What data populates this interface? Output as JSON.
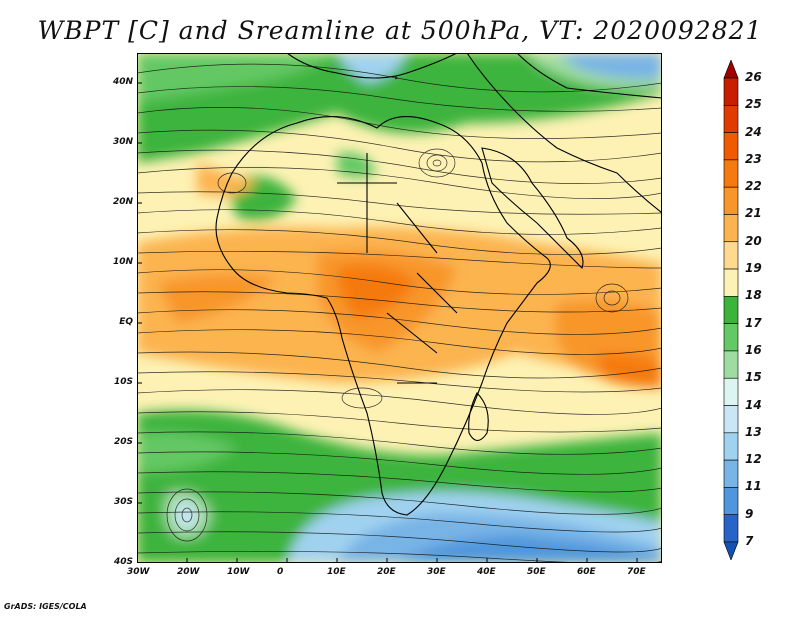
{
  "title": "WBPT [C] and Sreamline at 500hPa, VT: 2020092821",
  "credit": "GrADS: IGES/COLA",
  "map": {
    "lon_range": [
      -30,
      75
    ],
    "lat_range": [
      -40,
      45
    ],
    "x_ticks": [
      {
        "value": -30,
        "label": "30W"
      },
      {
        "value": -20,
        "label": "20W"
      },
      {
        "value": -10,
        "label": "10W"
      },
      {
        "value": 0,
        "label": "0"
      },
      {
        "value": 10,
        "label": "10E"
      },
      {
        "value": 20,
        "label": "20E"
      },
      {
        "value": 30,
        "label": "30E"
      },
      {
        "value": 40,
        "label": "40E"
      },
      {
        "value": 50,
        "label": "50E"
      },
      {
        "value": 60,
        "label": "60E"
      },
      {
        "value": 70,
        "label": "70E"
      }
    ],
    "y_ticks": [
      {
        "value": 40,
        "label": "40N"
      },
      {
        "value": 30,
        "label": "30N"
      },
      {
        "value": 20,
        "label": "20N"
      },
      {
        "value": 10,
        "label": "10N"
      },
      {
        "value": 0,
        "label": "EQ"
      },
      {
        "value": -10,
        "label": "10S"
      },
      {
        "value": -20,
        "label": "20S"
      },
      {
        "value": -30,
        "label": "30S"
      },
      {
        "value": -40,
        "label": "40S"
      }
    ]
  },
  "colorbar": {
    "labels": [
      "26",
      "25",
      "24",
      "23",
      "22",
      "21",
      "20",
      "19",
      "18",
      "17",
      "16",
      "15",
      "14",
      "13",
      "12",
      "11",
      "9",
      "7"
    ],
    "colors": [
      "#a00000",
      "#c81e00",
      "#e03c00",
      "#f05a00",
      "#f57a10",
      "#f8962c",
      "#fcb450",
      "#fed98e",
      "#fdf2b4",
      "#3cb43c",
      "#64c864",
      "#a0dca0",
      "#dcf5f0",
      "#c8e6f5",
      "#a0d2f0",
      "#78b4e6",
      "#5096dc",
      "#2864c8",
      "#1450b4"
    ]
  }
}
